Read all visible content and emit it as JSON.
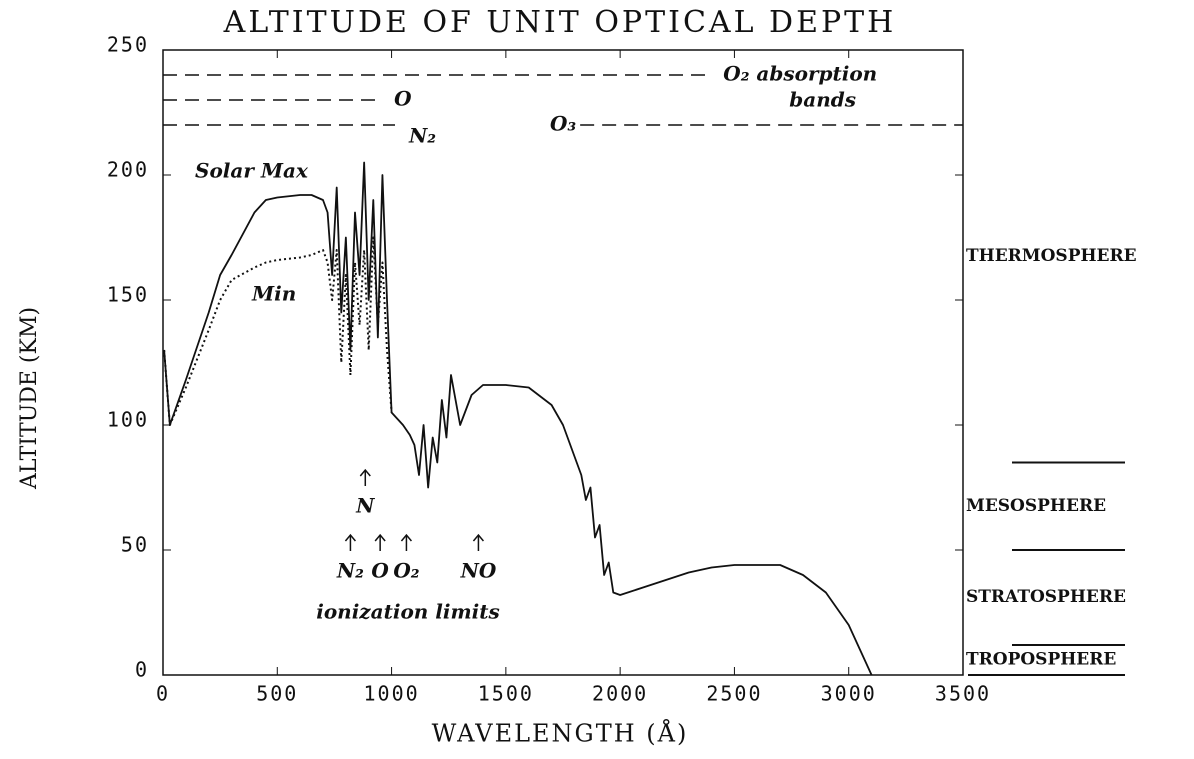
{
  "chart_data": {
    "type": "line",
    "title": "ALTITUDE OF UNIT OPTICAL DEPTH",
    "xlabel": "WAVELENGTH (Å)",
    "ylabel": "ALTITUDE (KM)",
    "xlim": [
      0,
      3500
    ],
    "ylim": [
      0,
      250
    ],
    "xticks": [
      0,
      500,
      1000,
      1500,
      2000,
      2500,
      3000,
      3500
    ],
    "yticks": [
      0,
      50,
      100,
      150,
      200,
      250
    ],
    "x": [
      5,
      30,
      100,
      200,
      250,
      300,
      400,
      450,
      500,
      600,
      650,
      700,
      720,
      740,
      760,
      780,
      800,
      820,
      840,
      860,
      880,
      900,
      920,
      940,
      960,
      980,
      1000,
      1050,
      1080,
      1100,
      1120,
      1140,
      1160,
      1180,
      1200,
      1220,
      1240,
      1260,
      1300,
      1350,
      1400,
      1500,
      1600,
      1700,
      1750,
      1770,
      1790,
      1810,
      1830,
      1850,
      1870,
      1890,
      1910,
      1930,
      1950,
      1970,
      2000,
      2100,
      2200,
      2300,
      2400,
      2500,
      2600,
      2700,
      2800,
      2900,
      3000,
      3050,
      3090,
      3100
    ],
    "series": [
      {
        "name": "Solar Max",
        "color": "#111111",
        "style": "solid",
        "values": [
          130,
          100,
          118,
          145,
          160,
          168,
          185,
          190,
          191,
          192,
          192,
          190,
          185,
          160,
          195,
          145,
          175,
          130,
          185,
          160,
          205,
          150,
          190,
          135,
          200,
          150,
          105,
          100,
          96,
          92,
          80,
          100,
          75,
          95,
          85,
          110,
          95,
          120,
          100,
          112,
          116,
          116,
          115,
          108,
          100,
          95,
          90,
          85,
          80,
          70,
          75,
          55,
          60,
          40,
          45,
          33,
          32,
          35,
          38,
          41,
          43,
          44,
          44,
          44,
          40,
          33,
          20,
          10,
          2,
          0
        ]
      },
      {
        "name": "Min",
        "color": "#111111",
        "style": "dotted",
        "values": [
          130,
          100,
          115,
          138,
          150,
          158,
          163,
          165,
          166,
          167,
          168,
          170,
          165,
          150,
          170,
          125,
          160,
          120,
          165,
          140,
          170,
          130,
          175,
          140,
          165,
          130,
          105,
          null,
          null,
          null,
          null,
          null,
          null,
          null,
          null,
          null,
          null,
          null,
          null,
          null,
          null,
          null,
          null,
          null,
          null,
          null,
          null,
          null,
          null,
          null,
          null,
          null,
          null,
          null,
          null,
          null,
          null,
          null,
          null,
          null,
          null,
          null,
          null,
          null,
          null,
          null,
          null,
          null,
          null,
          null
        ]
      }
    ],
    "reference_lines": [
      {
        "label": "O₂ absorption",
        "y": 240,
        "x": [
          0,
          2390
        ]
      },
      {
        "label": "O",
        "y": 230,
        "x": [
          0,
          950
        ]
      },
      {
        "label": "N₂",
        "y": 220,
        "x": [
          0,
          1015
        ]
      },
      {
        "label": "O₃",
        "y": 220,
        "x": [
          1825,
          3500
        ]
      }
    ],
    "reference_note": "bands",
    "ionization_limits": [
      {
        "label": "N₂",
        "x": 820
      },
      {
        "label": "O",
        "x": 950
      },
      {
        "label": "O₂",
        "x": 1065
      },
      {
        "label": "N",
        "x": 885
      },
      {
        "label": "NO",
        "x": 1380
      }
    ],
    "ionization_note": "ionization limits",
    "layers": [
      "THERMOSPHERE",
      "MESOSPHERE",
      "STRATOSPHERE",
      "TROPOSPHERE"
    ],
    "layer_boundaries": [
      85,
      50,
      12,
      0
    ]
  }
}
